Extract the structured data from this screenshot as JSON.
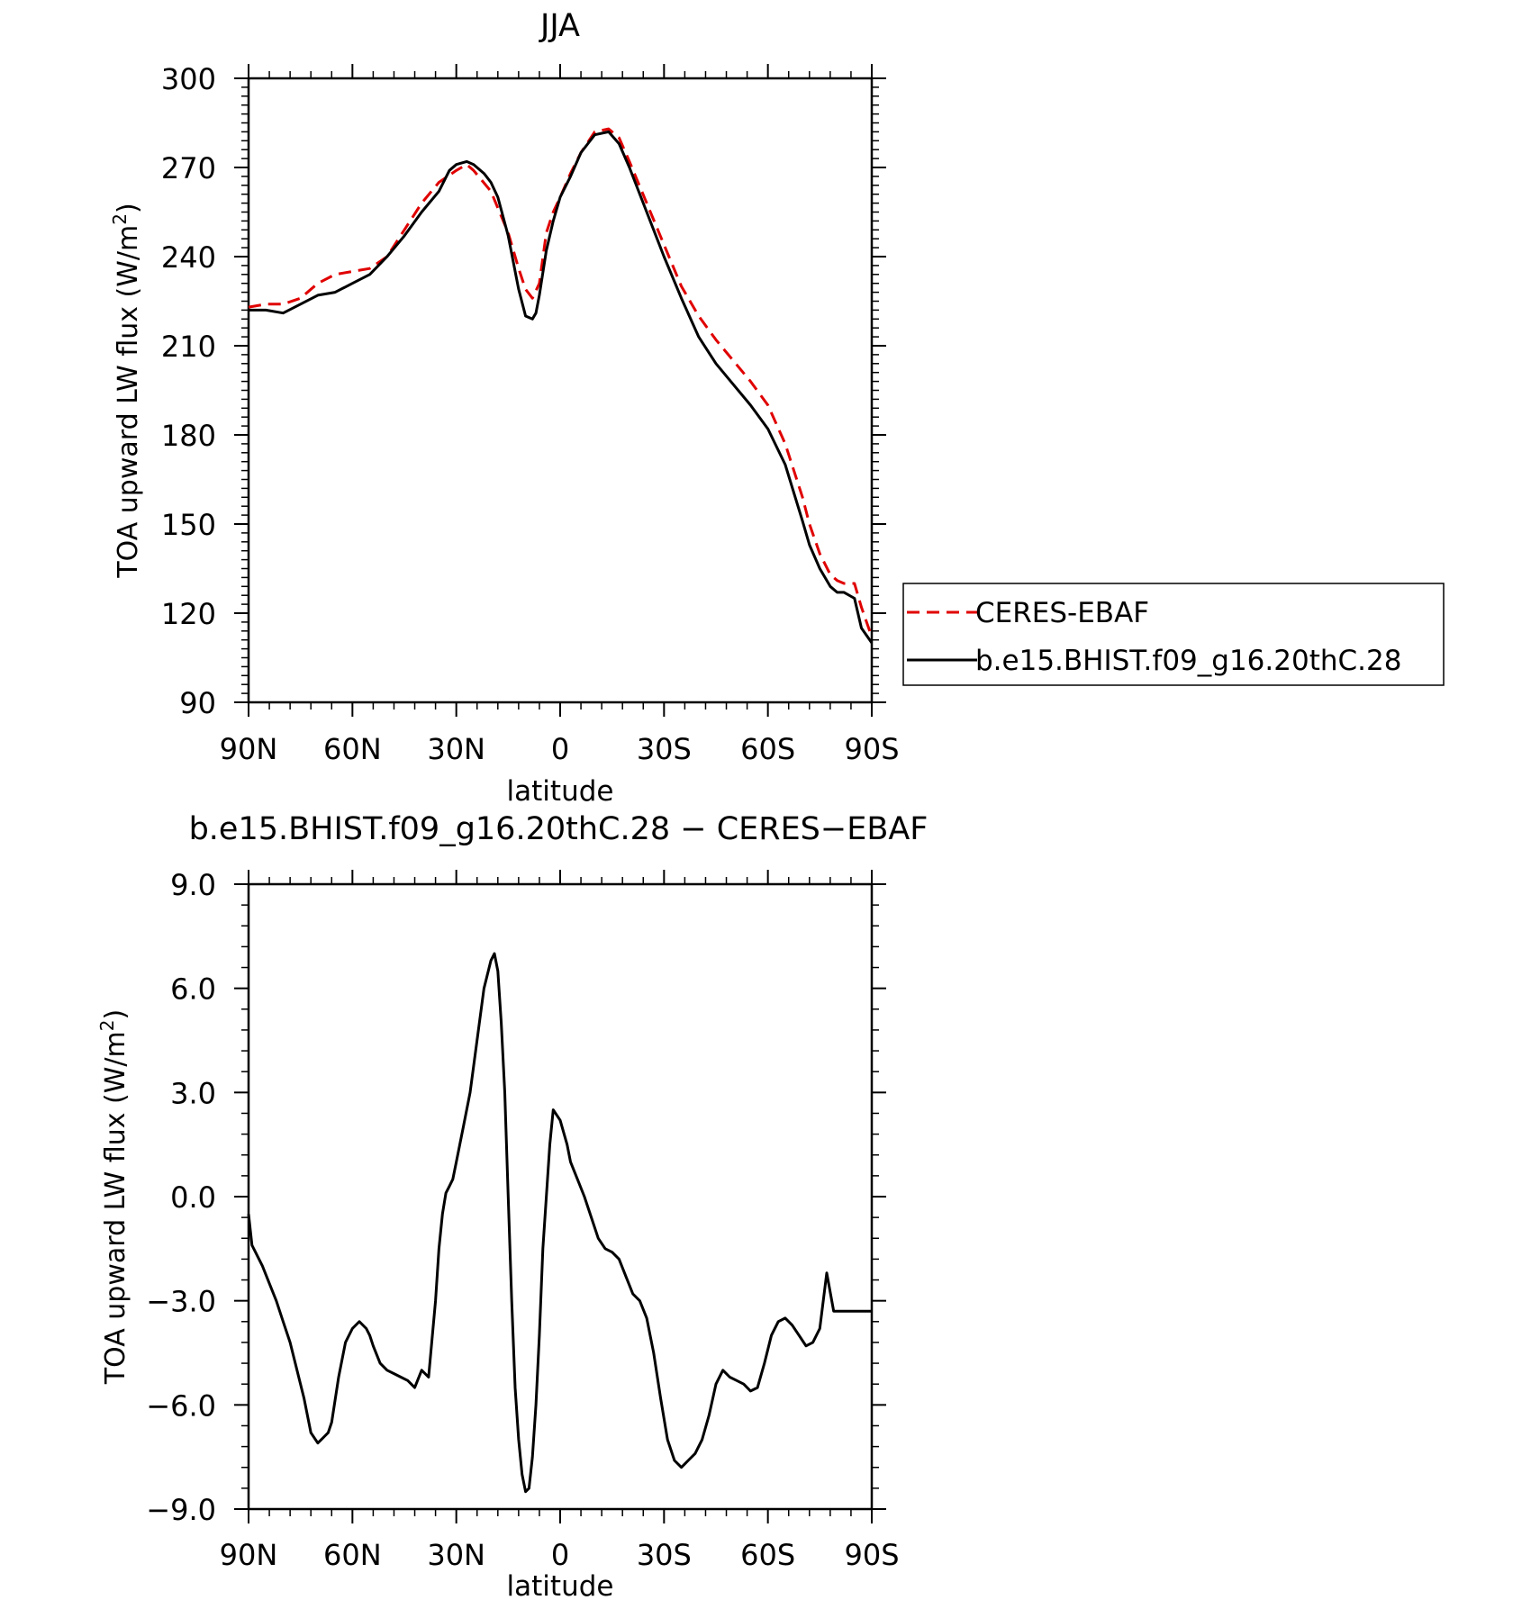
{
  "chart_data": [
    {
      "type": "line",
      "title": "JJA",
      "xlabel": "latitude",
      "ylabel": "TOA upward LW flux (W/m",
      "ylabel_sup": "2",
      "ylabel_close": ")",
      "xlim": [
        90,
        -90
      ],
      "ylim": [
        90,
        300
      ],
      "xticks": [
        90,
        60,
        30,
        0,
        -30,
        -60,
        -90
      ],
      "xtick_labels": [
        "90N",
        "60N",
        "30N",
        "0",
        "30S",
        "60S",
        "90S"
      ],
      "yticks": [
        90,
        120,
        150,
        180,
        210,
        240,
        270,
        300
      ],
      "ytick_labels": [
        "90",
        "120",
        "150",
        "180",
        "210",
        "240",
        "270",
        "300"
      ],
      "legend": {
        "placement": "right",
        "entries": [
          "CERES-EBAF",
          "b.e15.BHIST.f09_g16.20thC.28"
        ]
      },
      "series": [
        {
          "name": "CERES-EBAF",
          "color": "#e00000",
          "style": "dashed",
          "x": [
            90,
            85,
            80,
            75,
            70,
            65,
            60,
            55,
            50,
            45,
            40,
            35,
            30,
            27,
            25,
            20,
            15,
            12,
            10,
            8,
            6,
            4,
            2,
            0,
            -3,
            -6,
            -10,
            -14,
            -17,
            -20,
            -25,
            -30,
            -35,
            -40,
            -45,
            -50,
            -55,
            -60,
            -65,
            -70,
            -72,
            -75,
            -78,
            -80,
            -82,
            -85,
            -87,
            -90
          ],
          "y": [
            223,
            224,
            224,
            226,
            231,
            234,
            235,
            236,
            240,
            249,
            258,
            265,
            269,
            271,
            269,
            262,
            248,
            236,
            229,
            226,
            231,
            248,
            255,
            260,
            268,
            275,
            282,
            283,
            280,
            272,
            258,
            244,
            230,
            220,
            212,
            205,
            198,
            190,
            177,
            159,
            150,
            140,
            133,
            131,
            130,
            130,
            122,
            112
          ]
        },
        {
          "name": "b.e15.BHIST.f09_g16.20thC.28",
          "color": "#000000",
          "style": "solid",
          "x": [
            90,
            85,
            80,
            75,
            70,
            65,
            60,
            55,
            50,
            45,
            40,
            35,
            32,
            30,
            27,
            25,
            22,
            20,
            18,
            15,
            12,
            10,
            8,
            7,
            6,
            4,
            2,
            0,
            -3,
            -6,
            -10,
            -14,
            -17,
            -20,
            -25,
            -30,
            -35,
            -40,
            -45,
            -50,
            -55,
            -60,
            -65,
            -70,
            -72,
            -75,
            -78,
            -80,
            -82,
            -85,
            -87,
            -90
          ],
          "y": [
            222,
            222,
            221,
            224,
            227,
            228,
            231,
            234,
            240,
            247,
            255,
            262,
            269,
            271,
            272,
            271,
            268,
            265,
            260,
            247,
            229,
            220,
            219,
            221,
            227,
            242,
            252,
            260,
            267,
            275,
            281,
            282,
            278,
            270,
            255,
            240,
            226,
            213,
            204,
            197,
            190,
            182,
            170,
            151,
            143,
            135,
            129,
            127,
            127,
            125,
            115,
            110
          ]
        }
      ]
    },
    {
      "type": "line",
      "title": "b.e15.BHIST.f09_g16.20thC.28 − CERES−EBAF",
      "xlabel": "latitude",
      "ylabel": "TOA upward LW flux (W/m",
      "ylabel_sup": "2",
      "ylabel_close": ")",
      "xlim": [
        90,
        -90
      ],
      "ylim": [
        -9,
        9
      ],
      "xticks": [
        90,
        60,
        30,
        0,
        -30,
        -60,
        -90
      ],
      "xtick_labels": [
        "90N",
        "60N",
        "30N",
        "0",
        "30S",
        "60S",
        "90S"
      ],
      "yticks": [
        -9,
        -6,
        -3,
        0,
        3,
        6,
        9
      ],
      "ytick_labels": [
        "−9.0",
        "−6.0",
        "−3.0",
        "0.0",
        "3.0",
        "6.0",
        "9.0"
      ],
      "series": [
        {
          "color": "#000000",
          "style": "solid",
          "x": [
            90,
            89,
            88,
            86,
            84,
            82,
            80,
            78,
            76,
            74,
            72,
            70,
            69,
            68,
            67,
            66,
            64,
            62,
            60,
            58,
            56,
            55,
            54,
            52,
            50,
            48,
            46,
            44,
            42,
            40,
            38,
            36,
            35,
            34,
            33,
            32,
            31,
            30,
            28,
            26,
            24,
            22,
            20,
            19,
            18,
            17,
            16,
            15,
            14,
            13,
            12,
            11,
            10,
            9,
            8,
            7,
            6,
            5,
            3,
            2,
            0,
            -2,
            -3,
            -5,
            -7,
            -9,
            -11,
            -13,
            -15,
            -17,
            -19,
            -21,
            -23,
            -25,
            -27,
            -29,
            -31,
            -33,
            -35,
            -37,
            -39,
            -41,
            -43,
            -45,
            -47,
            -49,
            -51,
            -53,
            -55,
            -57,
            -59,
            -61,
            -63,
            -65,
            -67,
            -69,
            -71,
            -73,
            -75,
            -77,
            -79,
            -81,
            -83,
            -85,
            -87,
            -88,
            -89,
            -90
          ],
          "y": [
            -0.5,
            -1.4,
            -1.6,
            -2.0,
            -2.5,
            -3.0,
            -3.6,
            -4.2,
            -5.0,
            -5.8,
            -6.8,
            -7.1,
            -7.0,
            -6.9,
            -6.8,
            -6.5,
            -5.2,
            -4.2,
            -3.8,
            -3.6,
            -3.8,
            -4.0,
            -4.3,
            -4.8,
            -5.0,
            -5.1,
            -5.2,
            -5.3,
            -5.5,
            -5.0,
            -5.2,
            -3.0,
            -1.5,
            -0.5,
            0.1,
            0.3,
            0.5,
            1.0,
            2.0,
            3.0,
            4.5,
            6.0,
            6.8,
            7.0,
            6.5,
            5.0,
            3.0,
            0.0,
            -3.0,
            -5.5,
            -7.0,
            -8.0,
            -8.5,
            -8.4,
            -7.5,
            -6.0,
            -4.0,
            -1.5,
            1.5,
            2.5,
            2.2,
            1.5,
            1.0,
            0.5,
            0.0,
            -0.6,
            -1.2,
            -1.5,
            -1.6,
            -1.8,
            -2.3,
            -2.8,
            -3.0,
            -3.5,
            -4.5,
            -5.8,
            -7.0,
            -7.6,
            -7.8,
            -7.6,
            -7.4,
            -7.0,
            -6.3,
            -5.4,
            -5.0,
            -5.2,
            -5.3,
            -5.4,
            -5.6,
            -5.5,
            -4.8,
            -4.0,
            -3.6,
            -3.5,
            -3.7,
            -4.0,
            -4.3,
            -4.2,
            -3.8,
            -2.2,
            -3.3,
            -3.3,
            -3.3,
            -3.3,
            -3.3,
            -3.3,
            -3.3,
            -3.3
          ]
        }
      ]
    }
  ]
}
